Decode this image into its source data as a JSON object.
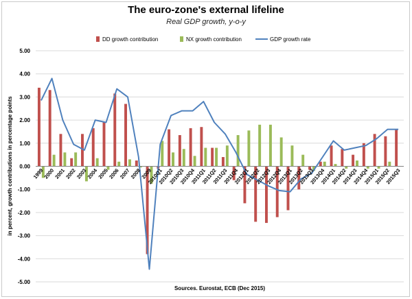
{
  "chart_data": {
    "type": "bar",
    "title": "The euro-zone's external lifeline",
    "subtitle": "Real GDP growth, y-o-y",
    "ylabel": "in percent, growth contributions in percentage points",
    "xlabel": "",
    "source": "Sources. Eurostat, ECB (Dec 2015)",
    "ylim": [
      -5,
      5
    ],
    "yticks": [
      "5.00",
      "4.00",
      "3.00",
      "2.00",
      "1.00",
      "0.00",
      "-1.00",
      "-2.00",
      "-3.00",
      "-4.00",
      "-5.00"
    ],
    "ytick_values": [
      5,
      4,
      3,
      2,
      1,
      0,
      -1,
      -2,
      -3,
      -4,
      -5
    ],
    "grid": true,
    "legend_position": "top",
    "categories": [
      "1999",
      "2000",
      "2001",
      "2002",
      "2003",
      "2004",
      "2005",
      "2006",
      "2007",
      "2008",
      "2009",
      "2010Q1",
      "2010Q2",
      "2010Q3",
      "2010Q4",
      "2011Q1",
      "2011Q2",
      "2011Q3",
      "2011Q4",
      "2012Q1",
      "2012Q2",
      "2012Q3",
      "2012Q4",
      "2013Q1",
      "2013Q2",
      "2013Q3",
      "2013Q4",
      "2014Q1",
      "2014Q2",
      "2014Q3",
      "2014Q4",
      "2015Q1",
      "2015Q2",
      "2015Q3"
    ],
    "series": [
      {
        "name": "DD growth contribution",
        "kind": "bar",
        "color": "#c0504d",
        "values": [
          3.4,
          3.3,
          1.4,
          0.35,
          1.4,
          1.65,
          1.9,
          3.15,
          2.7,
          0.25,
          -3.8,
          -0.1,
          1.6,
          1.35,
          1.65,
          1.7,
          0.8,
          0.4,
          -0.6,
          -1.6,
          -2.4,
          -2.45,
          -2.2,
          -1.9,
          -1.0,
          -0.15,
          0.2,
          0.9,
          0.75,
          0.5,
          1.0,
          1.4,
          1.3,
          1.6
        ]
      },
      {
        "name": "NX growth contribution",
        "kind": "bar",
        "color": "#9bbb59",
        "values": [
          -0.5,
          0.5,
          0.6,
          0.6,
          -0.65,
          0.35,
          -0.15,
          0.2,
          0.3,
          -0.05,
          -0.75,
          1.1,
          0.6,
          0.75,
          0.45,
          0.8,
          0.8,
          0.9,
          1.35,
          1.55,
          1.8,
          1.8,
          1.25,
          0.9,
          0.5,
          -0.2,
          0.2,
          0.1,
          -0.1,
          0.25,
          -0.1,
          -0.1,
          0.2,
          0.0
        ]
      },
      {
        "name": "GDP growth rate",
        "kind": "line",
        "color": "#4f81bd",
        "values": [
          2.85,
          3.8,
          2.0,
          0.95,
          0.7,
          2.0,
          1.9,
          3.35,
          3.0,
          0.4,
          -4.45,
          0.95,
          2.2,
          2.4,
          2.4,
          2.8,
          1.9,
          1.4,
          0.6,
          -0.35,
          -0.6,
          -0.85,
          -1.05,
          -1.1,
          -0.55,
          -0.3,
          0.4,
          1.1,
          0.7,
          0.8,
          0.9,
          1.2,
          1.6,
          1.6
        ]
      }
    ]
  }
}
